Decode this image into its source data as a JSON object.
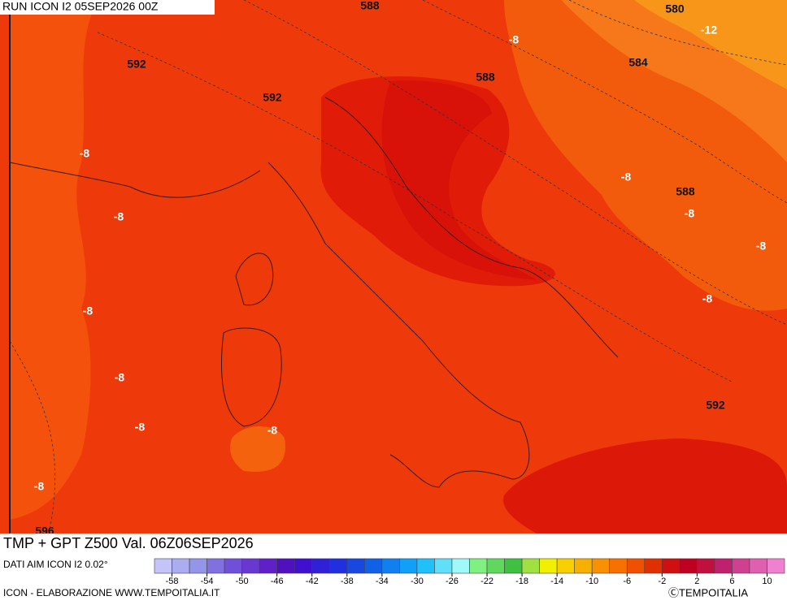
{
  "header": {
    "run": "RUN ICON I2 05SEP2026 00Z"
  },
  "map": {
    "contour_labels": [
      "588",
      "580",
      "-12",
      "-8",
      "592",
      "584",
      "588",
      "592",
      "-8",
      "-8",
      "588",
      "-8",
      "-8",
      "-8",
      "-8",
      "-8",
      "-8",
      "592",
      "-8",
      "-8",
      "-8",
      "596"
    ]
  },
  "footer": {
    "title": "TMP + GPT Z500 Val. 06Z06SEP2026",
    "source": "DATI AIM ICON I2 0.02°",
    "credit": "ICON - ELABORAZIONE WWW.TEMPOITALIA.IT",
    "logo": "ⒸTEMPOITALIA"
  },
  "colorbar": {
    "clim": [
      -60,
      12
    ],
    "ticks": [
      -58,
      -54,
      -50,
      -46,
      -42,
      -38,
      -34,
      -30,
      -26,
      -22,
      -18,
      -14,
      -10,
      -6,
      -2,
      2,
      6,
      10
    ],
    "colors": [
      "#c4c4f8",
      "#acacf0",
      "#9494e8",
      "#8070e0",
      "#7050d8",
      "#6838d0",
      "#6020c8",
      "#5010c0",
      "#4010d0",
      "#3020d8",
      "#2030e0",
      "#1848e0",
      "#1060e8",
      "#1080f0",
      "#10a0f8",
      "#20c0f8",
      "#60e0f8",
      "#a0f8f8",
      "#80f080",
      "#60d860",
      "#40c040",
      "#a0e040",
      "#f0f000",
      "#f8d000",
      "#f8b000",
      "#f89000",
      "#f87000",
      "#f05000",
      "#e03000",
      "#d01010",
      "#c00020",
      "#c01040",
      "#c02070",
      "#d04090",
      "#e060b0",
      "#f080d0"
    ]
  }
}
